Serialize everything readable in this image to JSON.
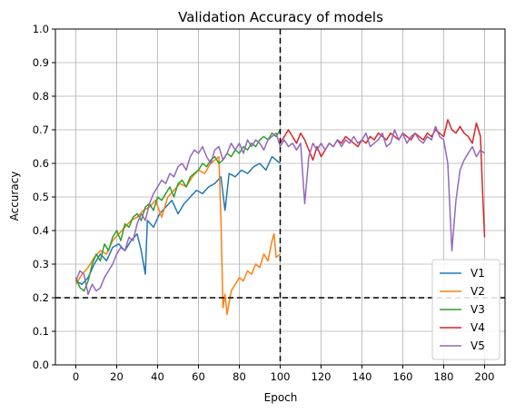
{
  "chart_data": {
    "type": "line",
    "title": "Validation Accuracy of models",
    "xlabel": "Epoch",
    "ylabel": "Accuracy",
    "xlim": [
      -10,
      210
    ],
    "ylim": [
      0.0,
      1.0
    ],
    "xticks": [
      0,
      20,
      40,
      60,
      80,
      100,
      120,
      140,
      160,
      180,
      200
    ],
    "yticks": [
      0.0,
      0.1,
      0.2,
      0.3,
      0.4,
      0.5,
      0.6,
      0.7,
      0.8,
      0.9,
      1.0
    ],
    "ytick_labels": [
      "0.0",
      "0.1",
      "0.2",
      "0.3",
      "0.4",
      "0.5",
      "0.6",
      "0.7",
      "0.8",
      "0.9",
      "1.0"
    ],
    "grid": true,
    "legend_position": "lower-right",
    "reference_lines": [
      {
        "orientation": "vertical",
        "value": 100,
        "style": "dashed",
        "color": "#000000"
      },
      {
        "orientation": "horizontal",
        "value": 0.2,
        "style": "dashed",
        "color": "#000000"
      }
    ],
    "series": [
      {
        "name": "V1",
        "color": "#1f77b4",
        "points": [
          [
            0,
            0.25
          ],
          [
            3,
            0.24
          ],
          [
            6,
            0.26
          ],
          [
            9,
            0.3
          ],
          [
            12,
            0.33
          ],
          [
            15,
            0.31
          ],
          [
            18,
            0.35
          ],
          [
            21,
            0.36
          ],
          [
            24,
            0.34
          ],
          [
            27,
            0.37
          ],
          [
            30,
            0.39
          ],
          [
            32,
            0.34
          ],
          [
            34,
            0.27
          ],
          [
            35,
            0.43
          ],
          [
            38,
            0.41
          ],
          [
            41,
            0.45
          ],
          [
            44,
            0.47
          ],
          [
            47,
            0.49
          ],
          [
            50,
            0.45
          ],
          [
            53,
            0.48
          ],
          [
            56,
            0.5
          ],
          [
            59,
            0.52
          ],
          [
            62,
            0.51
          ],
          [
            65,
            0.53
          ],
          [
            68,
            0.54
          ],
          [
            71,
            0.56
          ],
          [
            73,
            0.46
          ],
          [
            75,
            0.57
          ],
          [
            78,
            0.56
          ],
          [
            81,
            0.58
          ],
          [
            84,
            0.57
          ],
          [
            87,
            0.59
          ],
          [
            90,
            0.6
          ],
          [
            93,
            0.58
          ],
          [
            96,
            0.62
          ],
          [
            98,
            0.61
          ],
          [
            100,
            0.6
          ]
        ]
      },
      {
        "name": "V2",
        "color": "#ff7f0e",
        "points": [
          [
            0,
            0.24
          ],
          [
            3,
            0.27
          ],
          [
            6,
            0.29
          ],
          [
            9,
            0.32
          ],
          [
            12,
            0.34
          ],
          [
            15,
            0.33
          ],
          [
            18,
            0.37
          ],
          [
            21,
            0.39
          ],
          [
            24,
            0.41
          ],
          [
            27,
            0.43
          ],
          [
            30,
            0.44
          ],
          [
            33,
            0.46
          ],
          [
            36,
            0.47
          ],
          [
            39,
            0.49
          ],
          [
            42,
            0.44
          ],
          [
            45,
            0.5
          ],
          [
            48,
            0.52
          ],
          [
            51,
            0.54
          ],
          [
            54,
            0.53
          ],
          [
            57,
            0.56
          ],
          [
            60,
            0.58
          ],
          [
            63,
            0.57
          ],
          [
            66,
            0.6
          ],
          [
            68,
            0.61
          ],
          [
            70,
            0.62
          ],
          [
            71,
            0.43
          ],
          [
            72,
            0.17
          ],
          [
            73,
            0.21
          ],
          [
            74,
            0.15
          ],
          [
            76,
            0.22
          ],
          [
            78,
            0.24
          ],
          [
            80,
            0.26
          ],
          [
            82,
            0.25
          ],
          [
            84,
            0.28
          ],
          [
            86,
            0.27
          ],
          [
            88,
            0.3
          ],
          [
            90,
            0.29
          ],
          [
            92,
            0.33
          ],
          [
            94,
            0.31
          ],
          [
            96,
            0.37
          ],
          [
            97,
            0.39
          ],
          [
            98,
            0.32
          ],
          [
            100,
            0.33
          ]
        ]
      },
      {
        "name": "V3",
        "color": "#2ca02c",
        "points": [
          [
            0,
            0.26
          ],
          [
            2,
            0.23
          ],
          [
            4,
            0.22
          ],
          [
            6,
            0.25
          ],
          [
            8,
            0.3
          ],
          [
            10,
            0.33
          ],
          [
            12,
            0.31
          ],
          [
            14,
            0.36
          ],
          [
            16,
            0.34
          ],
          [
            18,
            0.38
          ],
          [
            20,
            0.4
          ],
          [
            22,
            0.37
          ],
          [
            24,
            0.42
          ],
          [
            26,
            0.41
          ],
          [
            28,
            0.44
          ],
          [
            30,
            0.45
          ],
          [
            32,
            0.43
          ],
          [
            34,
            0.47
          ],
          [
            36,
            0.48
          ],
          [
            38,
            0.46
          ],
          [
            40,
            0.5
          ],
          [
            42,
            0.49
          ],
          [
            44,
            0.51
          ],
          [
            46,
            0.53
          ],
          [
            48,
            0.5
          ],
          [
            50,
            0.54
          ],
          [
            52,
            0.55
          ],
          [
            54,
            0.53
          ],
          [
            56,
            0.56
          ],
          [
            58,
            0.57
          ],
          [
            60,
            0.58
          ],
          [
            62,
            0.6
          ],
          [
            64,
            0.59
          ],
          [
            66,
            0.61
          ],
          [
            68,
            0.62
          ],
          [
            70,
            0.6
          ],
          [
            72,
            0.61
          ],
          [
            74,
            0.63
          ],
          [
            76,
            0.62
          ],
          [
            78,
            0.64
          ],
          [
            80,
            0.63
          ],
          [
            82,
            0.65
          ],
          [
            84,
            0.64
          ],
          [
            86,
            0.66
          ],
          [
            88,
            0.65
          ],
          [
            90,
            0.67
          ],
          [
            92,
            0.68
          ],
          [
            94,
            0.67
          ],
          [
            96,
            0.69
          ],
          [
            98,
            0.68
          ],
          [
            100,
            0.7
          ]
        ]
      },
      {
        "name": "V4",
        "color": "#d62728",
        "points": [
          [
            100,
            0.66
          ],
          [
            102,
            0.68
          ],
          [
            104,
            0.7
          ],
          [
            106,
            0.68
          ],
          [
            108,
            0.66
          ],
          [
            110,
            0.69
          ],
          [
            112,
            0.67
          ],
          [
            114,
            0.64
          ],
          [
            116,
            0.61
          ],
          [
            118,
            0.65
          ],
          [
            120,
            0.62
          ],
          [
            122,
            0.64
          ],
          [
            124,
            0.66
          ],
          [
            126,
            0.65
          ],
          [
            128,
            0.67
          ],
          [
            130,
            0.66
          ],
          [
            132,
            0.68
          ],
          [
            134,
            0.67
          ],
          [
            136,
            0.66
          ],
          [
            138,
            0.65
          ],
          [
            140,
            0.67
          ],
          [
            142,
            0.66
          ],
          [
            144,
            0.68
          ],
          [
            146,
            0.67
          ],
          [
            148,
            0.69
          ],
          [
            150,
            0.68
          ],
          [
            152,
            0.67
          ],
          [
            154,
            0.69
          ],
          [
            156,
            0.68
          ],
          [
            158,
            0.67
          ],
          [
            160,
            0.69
          ],
          [
            162,
            0.68
          ],
          [
            164,
            0.67
          ],
          [
            166,
            0.69
          ],
          [
            168,
            0.68
          ],
          [
            170,
            0.67
          ],
          [
            172,
            0.69
          ],
          [
            174,
            0.68
          ],
          [
            176,
            0.7
          ],
          [
            178,
            0.69
          ],
          [
            180,
            0.68
          ],
          [
            182,
            0.73
          ],
          [
            184,
            0.7
          ],
          [
            186,
            0.69
          ],
          [
            188,
            0.71
          ],
          [
            190,
            0.69
          ],
          [
            192,
            0.68
          ],
          [
            194,
            0.66
          ],
          [
            196,
            0.72
          ],
          [
            198,
            0.68
          ],
          [
            199,
            0.52
          ],
          [
            200,
            0.38
          ]
        ]
      },
      {
        "name": "V5",
        "color": "#9467bd",
        "points": [
          [
            0,
            0.25
          ],
          [
            2,
            0.28
          ],
          [
            4,
            0.27
          ],
          [
            6,
            0.21
          ],
          [
            8,
            0.24
          ],
          [
            10,
            0.22
          ],
          [
            12,
            0.23
          ],
          [
            14,
            0.26
          ],
          [
            16,
            0.28
          ],
          [
            18,
            0.3
          ],
          [
            20,
            0.33
          ],
          [
            22,
            0.35
          ],
          [
            24,
            0.34
          ],
          [
            26,
            0.38
          ],
          [
            28,
            0.37
          ],
          [
            30,
            0.42
          ],
          [
            32,
            0.45
          ],
          [
            34,
            0.43
          ],
          [
            36,
            0.48
          ],
          [
            38,
            0.51
          ],
          [
            40,
            0.53
          ],
          [
            42,
            0.55
          ],
          [
            44,
            0.54
          ],
          [
            46,
            0.57
          ],
          [
            48,
            0.56
          ],
          [
            50,
            0.59
          ],
          [
            52,
            0.6
          ],
          [
            54,
            0.58
          ],
          [
            56,
            0.62
          ],
          [
            58,
            0.64
          ],
          [
            60,
            0.63
          ],
          [
            62,
            0.65
          ],
          [
            64,
            0.62
          ],
          [
            66,
            0.6
          ],
          [
            68,
            0.64
          ],
          [
            70,
            0.65
          ],
          [
            72,
            0.61
          ],
          [
            74,
            0.63
          ],
          [
            76,
            0.66
          ],
          [
            78,
            0.64
          ],
          [
            80,
            0.66
          ],
          [
            82,
            0.63
          ],
          [
            84,
            0.67
          ],
          [
            86,
            0.65
          ],
          [
            88,
            0.67
          ],
          [
            90,
            0.66
          ],
          [
            92,
            0.64
          ],
          [
            94,
            0.67
          ],
          [
            96,
            0.68
          ],
          [
            98,
            0.69
          ],
          [
            100,
            0.65
          ],
          [
            102,
            0.67
          ],
          [
            104,
            0.65
          ],
          [
            106,
            0.66
          ],
          [
            108,
            0.64
          ],
          [
            110,
            0.66
          ],
          [
            112,
            0.48
          ],
          [
            114,
            0.62
          ],
          [
            116,
            0.66
          ],
          [
            118,
            0.64
          ],
          [
            120,
            0.66
          ],
          [
            122,
            0.64
          ],
          [
            124,
            0.66
          ],
          [
            126,
            0.65
          ],
          [
            128,
            0.67
          ],
          [
            130,
            0.65
          ],
          [
            132,
            0.67
          ],
          [
            134,
            0.66
          ],
          [
            136,
            0.68
          ],
          [
            138,
            0.66
          ],
          [
            140,
            0.67
          ],
          [
            142,
            0.69
          ],
          [
            144,
            0.65
          ],
          [
            146,
            0.66
          ],
          [
            148,
            0.67
          ],
          [
            150,
            0.69
          ],
          [
            152,
            0.65
          ],
          [
            154,
            0.66
          ],
          [
            156,
            0.7
          ],
          [
            158,
            0.67
          ],
          [
            160,
            0.69
          ],
          [
            162,
            0.66
          ],
          [
            164,
            0.68
          ],
          [
            166,
            0.69
          ],
          [
            168,
            0.67
          ],
          [
            170,
            0.66
          ],
          [
            172,
            0.68
          ],
          [
            174,
            0.67
          ],
          [
            176,
            0.71
          ],
          [
            178,
            0.68
          ],
          [
            180,
            0.67
          ],
          [
            182,
            0.6
          ],
          [
            183,
            0.47
          ],
          [
            184,
            0.34
          ],
          [
            186,
            0.49
          ],
          [
            188,
            0.58
          ],
          [
            190,
            0.61
          ],
          [
            192,
            0.63
          ],
          [
            194,
            0.65
          ],
          [
            196,
            0.62
          ],
          [
            198,
            0.64
          ],
          [
            200,
            0.63
          ]
        ]
      }
    ]
  }
}
